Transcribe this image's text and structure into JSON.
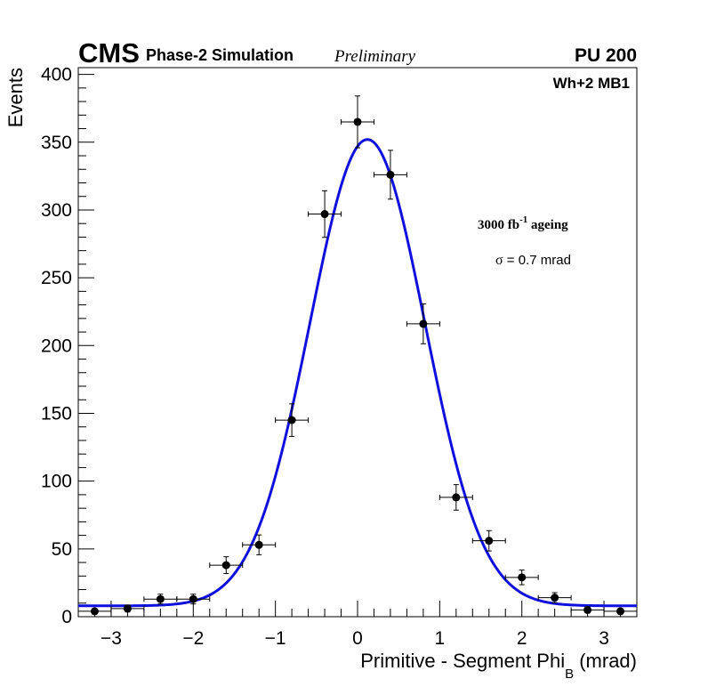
{
  "header": {
    "experiment": "CMS",
    "simulation": "Phase-2 Simulation",
    "status": "Preliminary",
    "pileup": "PU 200"
  },
  "annotations": {
    "station": "Wh+2 MB1",
    "ageing_prefix": "3000 fb",
    "ageing_exp": "-1",
    "ageing_suffix": " ageing",
    "sigma_symbol": "σ",
    "sigma_text": " = 0.7 mrad"
  },
  "chart_data": {
    "type": "scatter",
    "title": "",
    "xlabel": "Primitive - Segment Phi",
    "xlabel_sub": "B",
    "xlabel_unit": " (mrad)",
    "ylabel": "Events",
    "xlim": [
      -3.4,
      3.4
    ],
    "ylim": [
      0,
      405
    ],
    "x_ticks": [
      -3,
      -2,
      -1,
      0,
      1,
      2,
      3
    ],
    "x_tick_labels": [
      "−3",
      "−2",
      "−1",
      "0",
      "1",
      "2",
      "3"
    ],
    "y_ticks": [
      0,
      50,
      100,
      150,
      200,
      250,
      300,
      350,
      400
    ],
    "y_tick_labels": [
      "0",
      "50",
      "100",
      "150",
      "200",
      "250",
      "300",
      "350",
      "400"
    ],
    "bin_half_width": 0.2,
    "points": {
      "x": [
        -3.2,
        -2.8,
        -2.4,
        -2.0,
        -1.6,
        -1.2,
        -0.8,
        -0.4,
        0.0,
        0.4,
        0.8,
        1.2,
        1.6,
        2.0,
        2.4,
        2.8,
        3.2
      ],
      "y": [
        4,
        6,
        13,
        13,
        38,
        53,
        145,
        297,
        365,
        326,
        216,
        88,
        56,
        29,
        14,
        5,
        4
      ],
      "yerr": [
        2,
        2.5,
        3.6,
        3.6,
        6.2,
        7.3,
        12,
        17.2,
        19.1,
        18,
        14.7,
        9.4,
        7.5,
        5.4,
        3.7,
        2.2,
        2
      ]
    },
    "fit": {
      "function": "gaussian + constant",
      "amplitude": 344,
      "mean": 0.12,
      "sigma": 0.7,
      "constant": 8,
      "color": "#1010dd"
    },
    "marker_color": "#000000"
  }
}
